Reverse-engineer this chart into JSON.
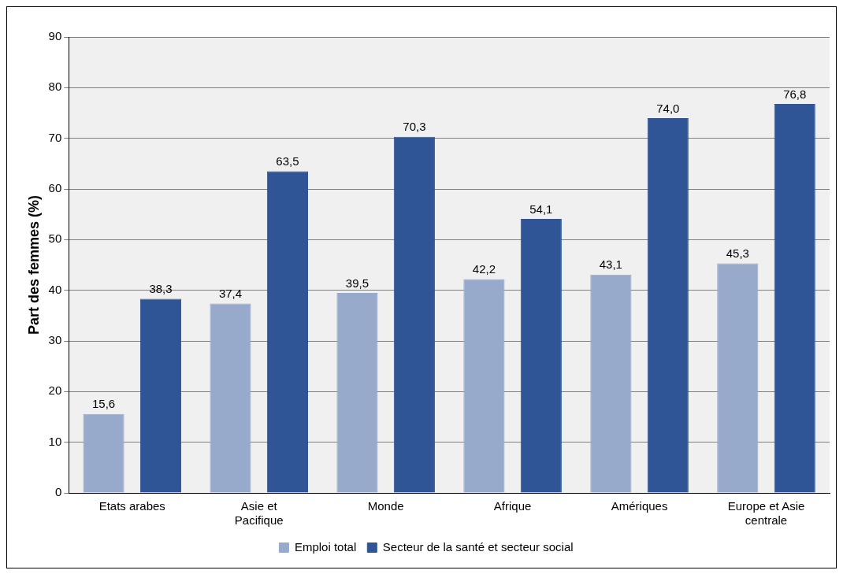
{
  "chart_data": {
    "type": "bar",
    "ylabel": "Part des femmes (%)",
    "categories": [
      "Etats arabes",
      "Asie et Pacifique",
      "Monde",
      "Afrique",
      "Amériques",
      "Europe et Asie centrale"
    ],
    "series": [
      {
        "name": "Emploi total",
        "color": "#97aacb",
        "values": [
          15.6,
          37.4,
          39.5,
          42.2,
          43.1,
          45.3
        ],
        "value_labels": [
          "15,6",
          "37,4",
          "39,5",
          "42,2",
          "43,1",
          "45,3"
        ]
      },
      {
        "name": "Secteur de la santé et secteur social",
        "color": "#2f5597",
        "values": [
          38.3,
          63.5,
          70.3,
          54.1,
          74.0,
          76.8
        ],
        "value_labels": [
          "38,3",
          "63,5",
          "70,3",
          "54,1",
          "74,0",
          "76,8"
        ]
      }
    ],
    "ylim": [
      0,
      90
    ],
    "yticks": [
      0,
      10,
      20,
      30,
      40,
      50,
      60,
      70,
      80,
      90
    ],
    "grid": "y",
    "legend": "bottom"
  }
}
